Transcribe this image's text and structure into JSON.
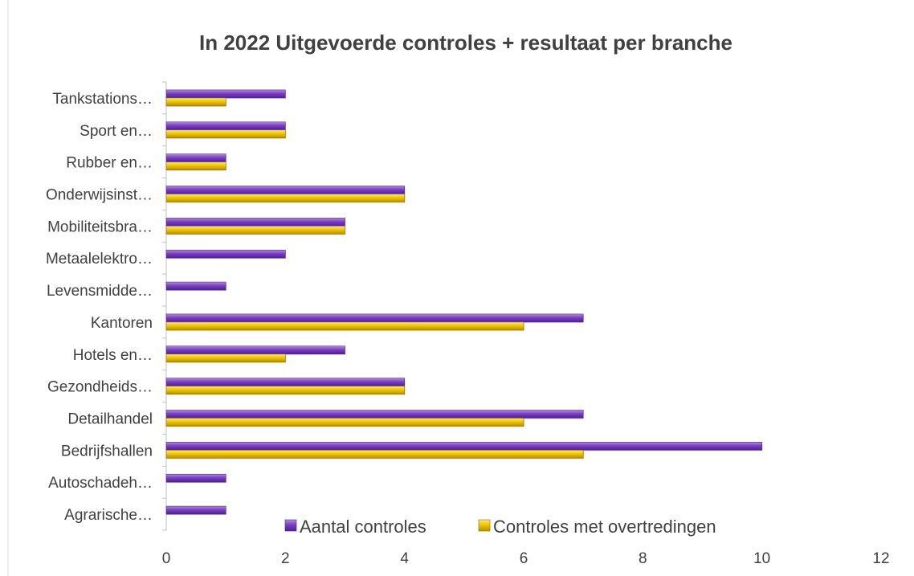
{
  "chart_data": {
    "type": "bar",
    "orientation": "horizontal",
    "title": "In 2022 Uitgevoerde controles + resultaat per branche",
    "categories": [
      "Agrarische…",
      "Autoschadeh…",
      "Bedrijfshallen",
      "Detailhandel",
      "Gezondheids…",
      "Hotels en…",
      "Kantoren",
      "Levensmidde…",
      "Metaalelektro…",
      "Mobiliteitsbra…",
      "Onderwijsinst…",
      "Rubber en…",
      "Sport en…",
      "Tankstations…"
    ],
    "series": [
      {
        "name": "Aantal controles",
        "color": "#7B3FC4",
        "values": [
          1,
          1,
          10,
          7,
          4,
          3,
          7,
          1,
          2,
          3,
          4,
          1,
          2,
          2
        ]
      },
      {
        "name": "Controles met overtredingen",
        "color": "#F2C500",
        "values": [
          0,
          0,
          7,
          6,
          4,
          2,
          6,
          0,
          0,
          3,
          4,
          1,
          2,
          1
        ]
      }
    ],
    "xlim": [
      0,
      12
    ],
    "xticks": [
      "0",
      "2",
      "4",
      "6",
      "8",
      "10",
      "12"
    ],
    "legend_position": "bottom-right",
    "grid": false
  }
}
